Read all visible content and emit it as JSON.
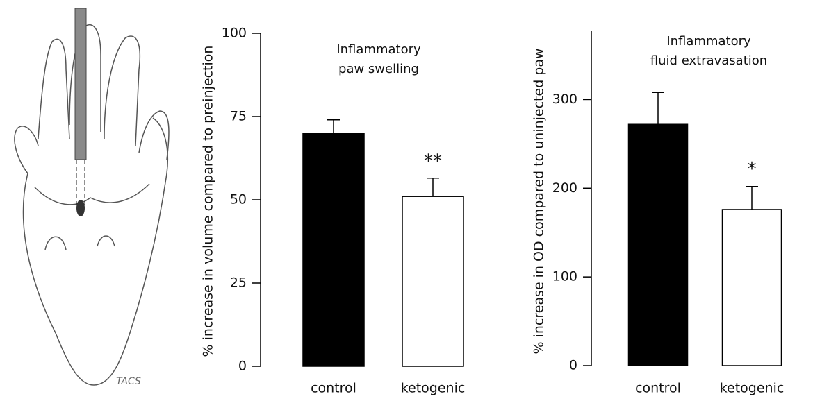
{
  "illustration": {
    "signature": "TACS"
  },
  "chart_data": [
    {
      "type": "bar",
      "title": [
        "Inflammatory",
        "paw swelling"
      ],
      "ylabel": "% increase in volume  compared to preinjection",
      "categories": [
        "control",
        "ketogenic"
      ],
      "values": [
        70,
        51
      ],
      "errors": [
        4,
        5.5
      ],
      "colors": [
        "#000000",
        "#ffffff"
      ],
      "significance": [
        null,
        "**"
      ],
      "ylim": [
        0,
        100
      ],
      "yticks": [
        0,
        25,
        50,
        75,
        100
      ]
    },
    {
      "type": "bar",
      "title": [
        "Inflammatory",
        "fluid extravasation"
      ],
      "ylabel": "% increase in OD compared to uninjected paw",
      "categories": [
        "control",
        "ketogenic"
      ],
      "values": [
        272,
        176
      ],
      "errors": [
        36,
        26
      ],
      "colors": [
        "#000000",
        "#ffffff"
      ],
      "significance": [
        null,
        "*"
      ],
      "ylim": [
        0,
        377
      ],
      "yticks": [
        0,
        100,
        200,
        300
      ]
    }
  ]
}
